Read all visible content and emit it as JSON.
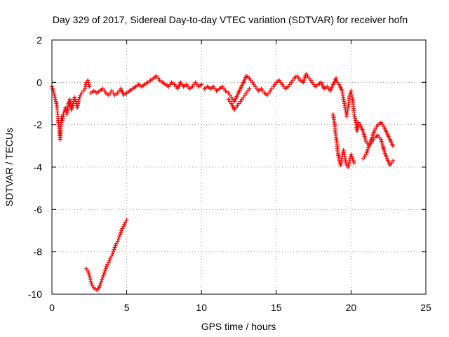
{
  "chart_data": {
    "type": "scatter",
    "title": "Day 329 of 2017, Sidereal Day-to-day VTEC variation (SDTVAR) for receiver hofn",
    "xlabel": "GPS time / hours",
    "ylabel": "SDTVAR / TECUs",
    "xlim": [
      0,
      25
    ],
    "ylim": [
      -10,
      2
    ],
    "xticks": [
      "0",
      "5",
      "10",
      "15",
      "20",
      "25"
    ],
    "yticks": [
      "2",
      "0",
      "-2",
      "-4",
      "-6",
      "-8",
      "-10"
    ],
    "xtick_values": [
      0,
      5,
      10,
      15,
      20,
      25
    ],
    "ytick_values": [
      2,
      0,
      -2,
      -4,
      -6,
      -8,
      -10
    ],
    "grid": true,
    "marker": "+",
    "series": [
      {
        "name": "SDTVAR",
        "color": "#ff0000",
        "segments": [
          {
            "x": [
              0.0,
              0.1,
              0.2,
              0.3,
              0.35,
              0.4,
              0.45,
              0.5,
              0.55,
              0.6,
              0.65,
              0.7,
              0.8,
              0.9,
              1.0,
              1.1,
              1.2,
              1.3,
              1.4,
              1.5,
              1.6,
              1.7,
              1.8,
              1.9,
              2.0,
              2.1,
              2.2,
              2.3,
              2.4,
              2.5
            ],
            "y": [
              -0.2,
              -0.4,
              -0.7,
              -1.0,
              -1.3,
              -1.6,
              -2.0,
              -2.4,
              -2.7,
              -2.0,
              -1.6,
              -1.8,
              -1.4,
              -1.2,
              -1.5,
              -1.0,
              -0.8,
              -1.3,
              -1.1,
              -0.7,
              -0.9,
              -1.2,
              -0.8,
              -0.6,
              -0.5,
              -0.4,
              -0.3,
              0.0,
              0.1,
              -0.2
            ]
          },
          {
            "x": [
              2.6,
              2.8,
              3.0,
              3.2,
              3.4,
              3.6,
              3.8,
              4.0,
              4.2,
              4.4,
              4.6,
              4.8,
              5.0,
              5.2,
              5.4,
              5.6,
              5.8,
              6.0,
              6.2,
              6.4,
              6.6,
              6.8,
              7.0,
              7.2,
              7.4,
              7.6,
              7.8,
              8.0,
              8.2,
              8.4,
              8.6,
              8.8,
              9.0,
              9.2,
              9.4,
              9.6,
              9.8,
              10.0
            ],
            "y": [
              -0.5,
              -0.4,
              -0.5,
              -0.4,
              -0.3,
              -0.5,
              -0.6,
              -0.4,
              -0.6,
              -0.5,
              -0.3,
              -0.6,
              -0.5,
              -0.4,
              -0.3,
              -0.2,
              -0.1,
              -0.2,
              -0.1,
              0.0,
              0.1,
              0.2,
              0.3,
              0.1,
              0.0,
              -0.1,
              -0.2,
              0.0,
              -0.1,
              -0.3,
              0.0,
              -0.2,
              -0.1,
              -0.3,
              -0.2,
              0.0,
              -0.2,
              -0.1
            ]
          },
          {
            "x": [
              10.2,
              10.4,
              10.6,
              10.8,
              11.0,
              11.2,
              11.4,
              11.6,
              11.8,
              12.0,
              12.2,
              12.4,
              12.6,
              12.8,
              13.0,
              13.2,
              13.4,
              13.6,
              13.8,
              14.0,
              14.2,
              14.4,
              14.6,
              14.8,
              15.0,
              15.2,
              15.4,
              15.6,
              15.8,
              16.0,
              16.2,
              16.4,
              16.6,
              16.8,
              17.0,
              17.2,
              17.4,
              17.6,
              17.8,
              18.0,
              18.2,
              18.4,
              18.6,
              18.8,
              19.0
            ],
            "y": [
              -0.3,
              -0.2,
              -0.3,
              -0.2,
              -0.4,
              -0.3,
              -0.2,
              -0.4,
              -0.5,
              -0.7,
              -0.9,
              -0.6,
              -0.3,
              0.0,
              0.3,
              0.2,
              0.0,
              -0.2,
              -0.4,
              -0.3,
              -0.5,
              -0.6,
              -0.4,
              -0.2,
              0.0,
              0.1,
              -0.1,
              -0.3,
              -0.2,
              0.0,
              0.2,
              0.3,
              0.1,
              0.0,
              0.4,
              0.2,
              0.0,
              -0.2,
              -0.1,
              0.0,
              -0.3,
              -0.2,
              -0.4,
              -0.1,
              0.2
            ]
          },
          {
            "x": [
              11.8,
              12.0,
              12.2,
              12.4,
              12.6,
              12.8,
              13.0,
              13.2
            ],
            "y": [
              -0.8,
              -1.0,
              -1.3,
              -1.1,
              -0.9,
              -0.7,
              -0.5,
              -0.3
            ]
          },
          {
            "x": [
              19.0,
              19.2,
              19.4,
              19.5,
              19.6,
              19.7,
              19.8,
              19.9,
              20.0,
              20.1,
              20.2,
              20.3,
              20.4,
              20.5
            ],
            "y": [
              0.1,
              -0.1,
              -0.4,
              -0.8,
              -1.2,
              -1.6,
              -1.2,
              -0.6,
              -0.4,
              -0.8,
              -1.5,
              -1.8,
              -2.3,
              -1.9
            ]
          },
          {
            "x": [
              18.8,
              18.9,
              19.0,
              19.1,
              19.2,
              19.3,
              19.4,
              19.5,
              19.6,
              19.7,
              19.8,
              19.9,
              20.0,
              20.1,
              20.2
            ],
            "y": [
              -1.5,
              -2.0,
              -2.6,
              -3.2,
              -3.7,
              -3.9,
              -3.5,
              -3.2,
              -3.6,
              -3.9,
              -4.0,
              -3.7,
              -3.4,
              -3.6,
              -3.8
            ]
          },
          {
            "x": [
              20.6,
              20.8,
              21.0,
              21.2,
              21.4,
              21.6,
              21.8,
              22.0,
              22.2,
              22.4,
              22.6,
              22.8
            ],
            "y": [
              -2.0,
              -2.3,
              -2.8,
              -3.0,
              -2.6,
              -2.2,
              -2.0,
              -1.9,
              -2.1,
              -2.4,
              -2.7,
              -3.0
            ]
          },
          {
            "x": [
              20.8,
              21.0,
              21.2,
              21.4,
              21.6,
              21.8,
              22.0,
              22.2,
              22.4,
              22.6,
              22.8
            ],
            "y": [
              -3.6,
              -3.4,
              -3.0,
              -2.8,
              -2.6,
              -2.5,
              -2.7,
              -3.2,
              -3.6,
              -3.9,
              -3.7
            ]
          },
          {
            "x": [
              2.3,
              2.4,
              2.5,
              2.6,
              2.7,
              2.8,
              2.9,
              3.0,
              3.1,
              3.2,
              3.3,
              3.4,
              3.5,
              3.6,
              3.7,
              3.8,
              3.9,
              4.0,
              4.1,
              4.2,
              4.3,
              4.4,
              4.5,
              4.6,
              4.7,
              4.8,
              4.9,
              5.0
            ],
            "y": [
              -8.8,
              -8.9,
              -9.1,
              -9.4,
              -9.6,
              -9.7,
              -9.75,
              -9.8,
              -9.75,
              -9.6,
              -9.4,
              -9.2,
              -9.0,
              -8.8,
              -8.6,
              -8.5,
              -8.3,
              -8.2,
              -8.0,
              -7.8,
              -7.6,
              -7.5,
              -7.3,
              -7.1,
              -6.9,
              -6.8,
              -6.6,
              -6.5
            ]
          }
        ]
      }
    ]
  }
}
